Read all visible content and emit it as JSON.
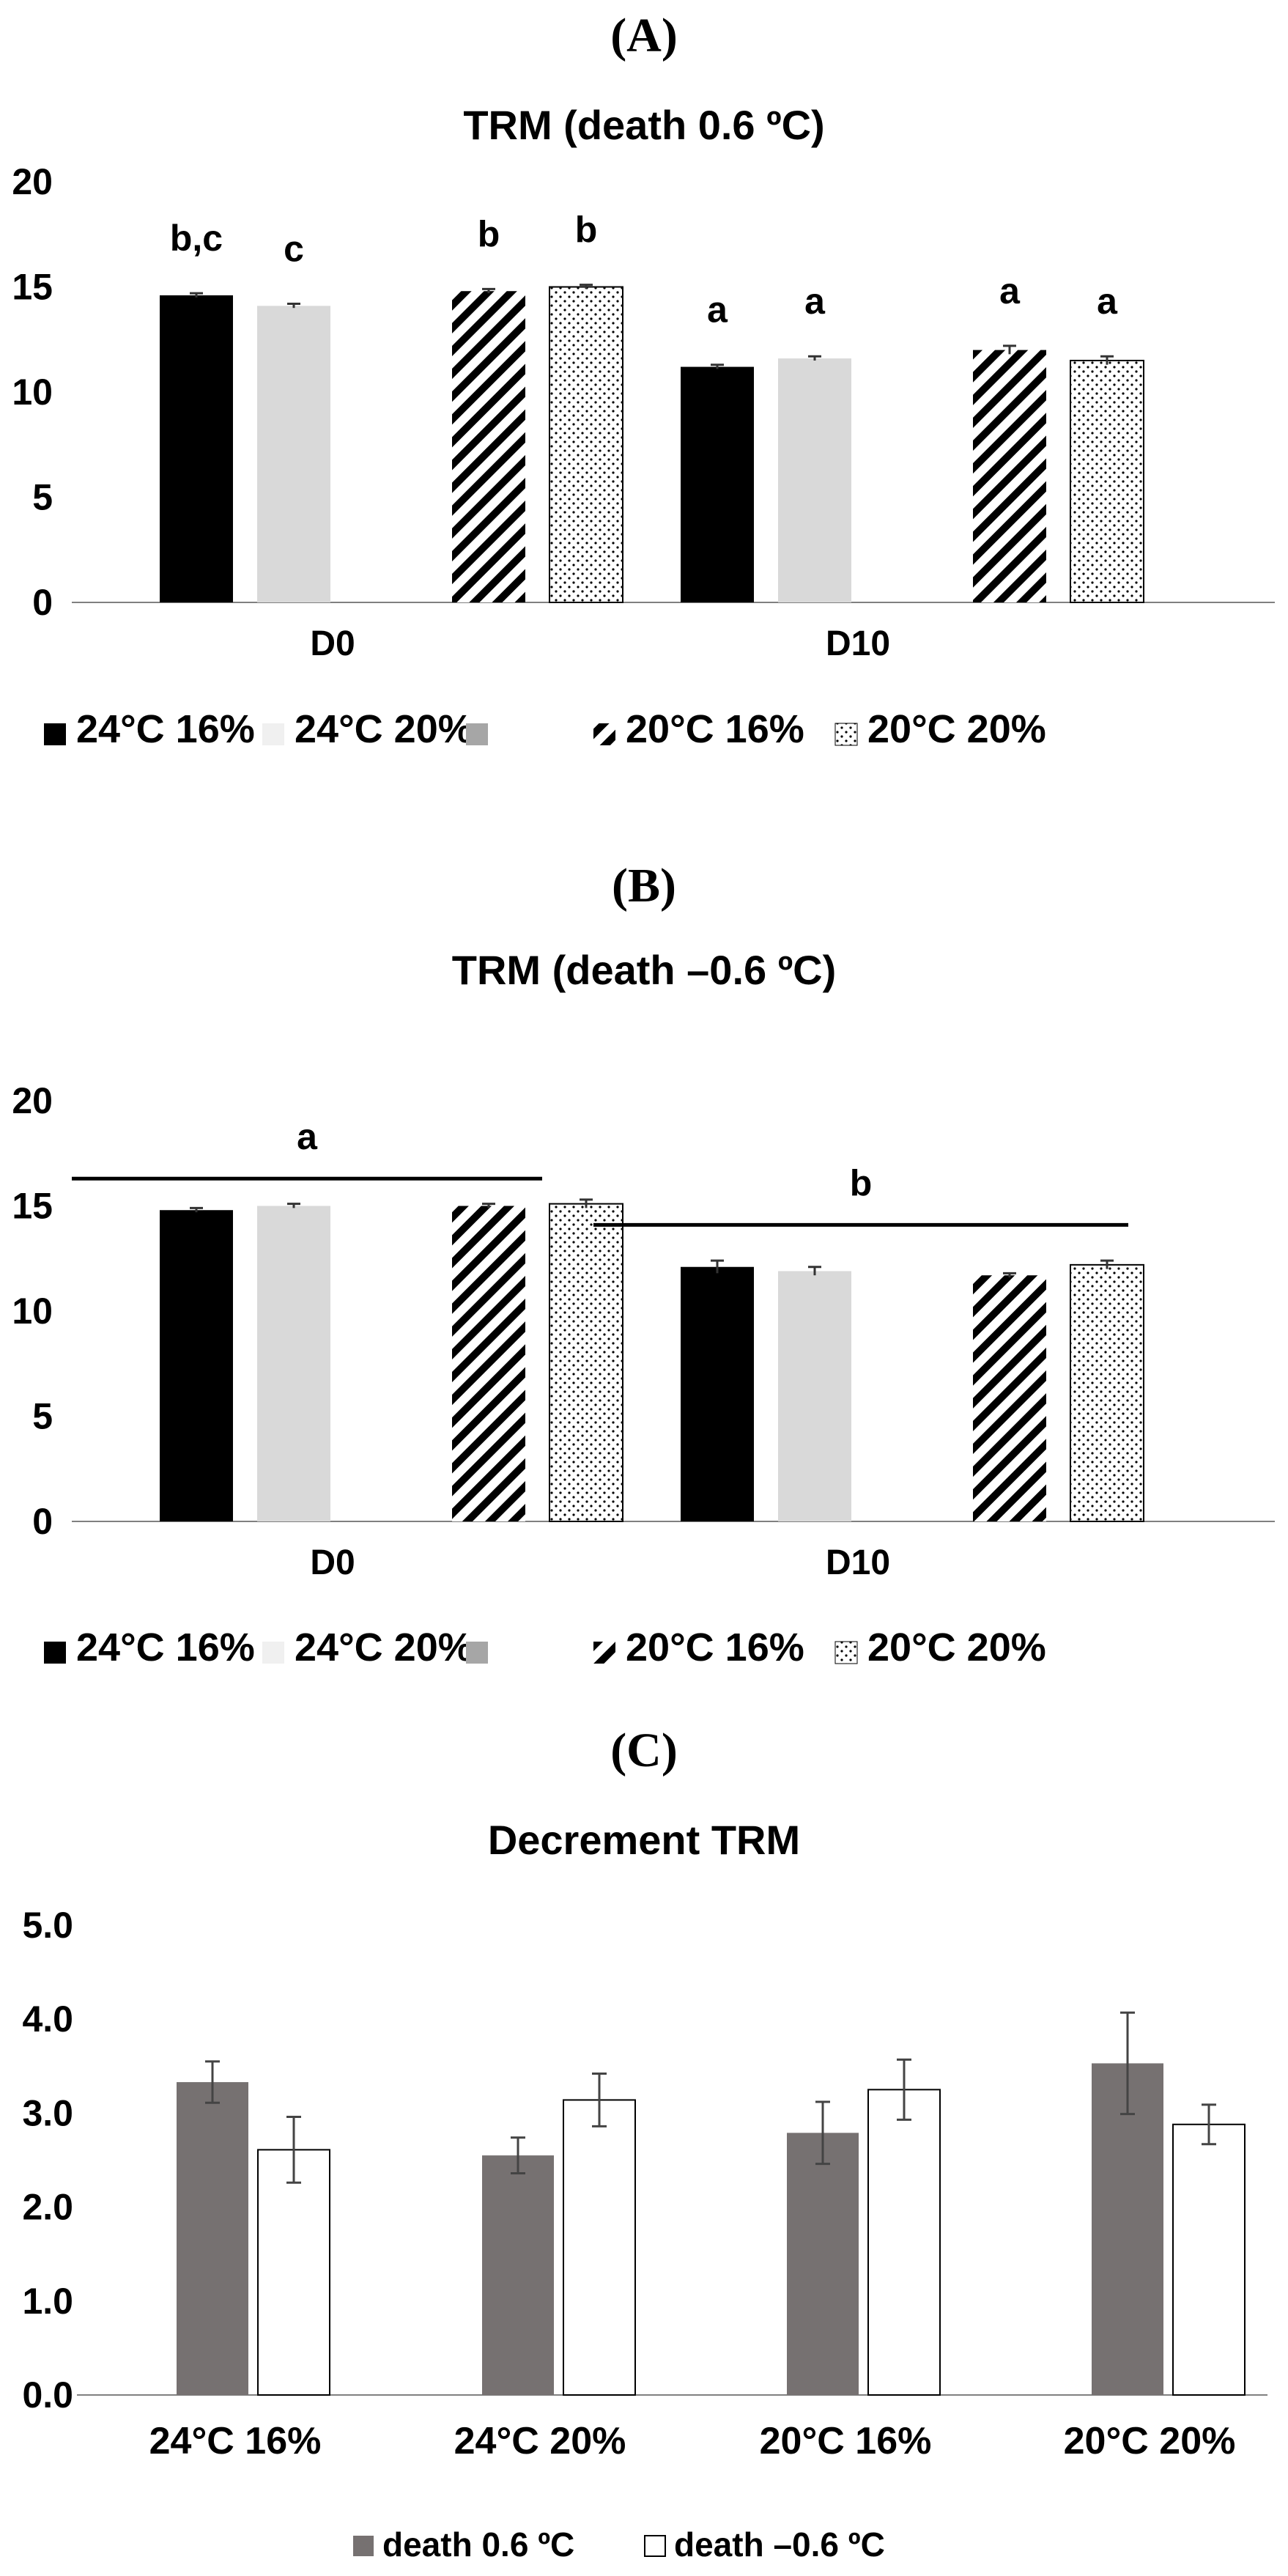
{
  "colors": {
    "s24_16": "#000000",
    "s24_20": "#d9d9d9",
    "gap": "#a6a6a6",
    "hatch": "#000000",
    "dot": "#000000",
    "dark_bar": "#767171",
    "white_bar": "#ffffff",
    "axis": "#808080",
    "sig_line": "#000000"
  },
  "chart_data": [
    {
      "panel_label": "(A)",
      "type": "bar",
      "title": "TRM (death 0.6 ºC)",
      "categories": [
        "D0",
        "D10"
      ],
      "ylim": [
        0,
        20
      ],
      "yticks": [
        "0",
        "5",
        "10",
        "15",
        "20"
      ],
      "series": [
        {
          "name": "24°C 16%",
          "pattern": "solid-black",
          "values": [
            14.6,
            11.2
          ],
          "errors": [
            0.1,
            0.1
          ],
          "letters": [
            "b,c",
            "a"
          ]
        },
        {
          "name": "24°C 20%",
          "pattern": "solid-light",
          "values": [
            14.1,
            11.6
          ],
          "errors": [
            0.1,
            0.1
          ],
          "letters": [
            "c",
            "a"
          ]
        },
        {
          "name": "",
          "pattern": "gap",
          "values": [
            null,
            null
          ],
          "errors": [
            null,
            null
          ],
          "letters": [
            "",
            ""
          ]
        },
        {
          "name": "20°C 16%",
          "pattern": "hatch",
          "values": [
            14.8,
            12.0
          ],
          "errors": [
            0.1,
            0.2
          ],
          "letters": [
            "b",
            "a"
          ]
        },
        {
          "name": "20°C 20%",
          "pattern": "dots",
          "values": [
            15.0,
            11.5
          ],
          "errors": [
            0.1,
            0.2
          ],
          "letters": [
            "b",
            "a"
          ]
        }
      ],
      "group_annotations": []
    },
    {
      "panel_label": "(B)",
      "type": "bar",
      "title": "TRM (death –0.6 ºC)",
      "categories": [
        "D0",
        "D10"
      ],
      "ylim": [
        0,
        20
      ],
      "yticks": [
        "0",
        "5",
        "10",
        "15",
        "20"
      ],
      "series": [
        {
          "name": "24°C 16%",
          "pattern": "solid-black",
          "values": [
            14.8,
            12.1
          ],
          "errors": [
            0.1,
            0.3
          ],
          "letters": [
            "",
            ""
          ]
        },
        {
          "name": "24°C 20%",
          "pattern": "solid-light",
          "values": [
            15.0,
            11.9
          ],
          "errors": [
            0.1,
            0.2
          ],
          "letters": [
            "",
            ""
          ]
        },
        {
          "name": "",
          "pattern": "gap",
          "values": [
            null,
            null
          ],
          "errors": [
            null,
            null
          ],
          "letters": [
            "",
            ""
          ]
        },
        {
          "name": "20°C 16%",
          "pattern": "hatch",
          "values": [
            15.0,
            11.7
          ],
          "errors": [
            0.1,
            0.1
          ],
          "letters": [
            "",
            ""
          ]
        },
        {
          "name": "20°C 20%",
          "pattern": "dots",
          "values": [
            15.1,
            12.2
          ],
          "errors": [
            0.2,
            0.2
          ],
          "letters": [
            "",
            ""
          ]
        }
      ],
      "group_annotations": [
        {
          "letter": "a",
          "line_y": 16.3
        },
        {
          "letter": "b",
          "line_y": 14.1
        }
      ]
    },
    {
      "panel_label": "(C)",
      "type": "bar",
      "title": "Decrement TRM",
      "categories": [
        "24°C 16%",
        "24°C 20%",
        "20°C 16%",
        "20°C 20%"
      ],
      "ylim": [
        0,
        5
      ],
      "yticks": [
        "0.0",
        "1.0",
        "2.0",
        "3.0",
        "4.0",
        "5.0"
      ],
      "series": [
        {
          "name": "death 0.6 ºC",
          "pattern": "solid-dark",
          "values": [
            3.33,
            2.55,
            2.79,
            3.53
          ],
          "errors": [
            0.22,
            0.19,
            0.33,
            0.54
          ]
        },
        {
          "name": "death –0.6 ºC",
          "pattern": "solid-white",
          "values": [
            2.61,
            3.14,
            3.25,
            2.88
          ],
          "errors": [
            0.35,
            0.28,
            0.32,
            0.21
          ]
        }
      ]
    }
  ]
}
